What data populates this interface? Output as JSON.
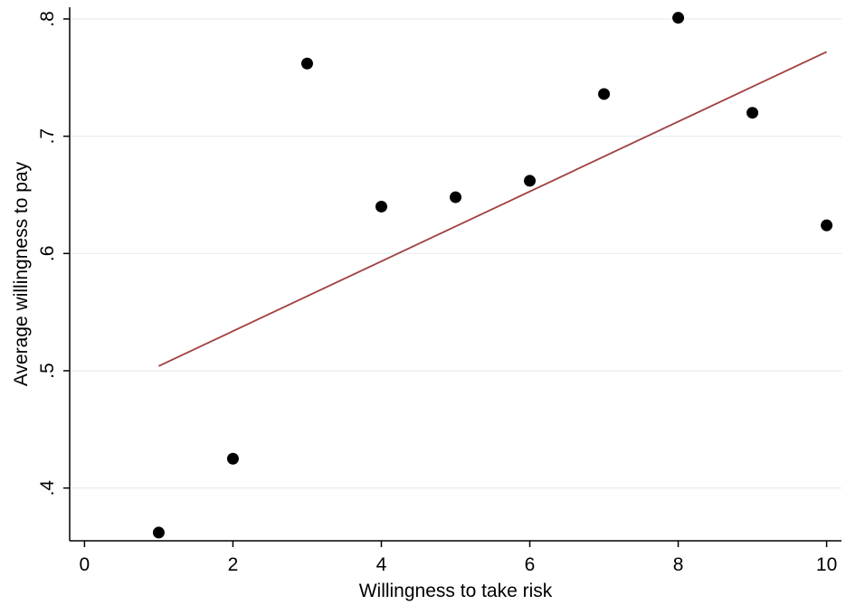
{
  "chart_data": {
    "type": "scatter",
    "title": "",
    "xlabel": "Willingness to take risk",
    "ylabel": "Average willingness to pay",
    "xlim": [
      -0.2,
      10.2
    ],
    "ylim": [
      0.355,
      0.81
    ],
    "x_ticks": [
      0,
      2,
      4,
      6,
      8,
      10
    ],
    "x_tick_labels": [
      "0",
      "2",
      "4",
      "6",
      "8",
      "10"
    ],
    "y_ticks": [
      0.4,
      0.5,
      0.6,
      0.7,
      0.8
    ],
    "y_tick_labels": [
      ".4",
      ".5",
      ".6",
      ".7",
      ".8"
    ],
    "grid": "horizontal",
    "series": [
      {
        "type": "scatter",
        "color": "#000000",
        "x": [
          1,
          2,
          3,
          4,
          5,
          6,
          7,
          8,
          9,
          10
        ],
        "y": [
          0.362,
          0.425,
          0.762,
          0.64,
          0.648,
          0.662,
          0.736,
          0.801,
          0.72,
          0.624
        ]
      },
      {
        "type": "line",
        "color": "#a0403f",
        "x": [
          1,
          10
        ],
        "y": [
          0.504,
          0.772
        ]
      }
    ]
  }
}
